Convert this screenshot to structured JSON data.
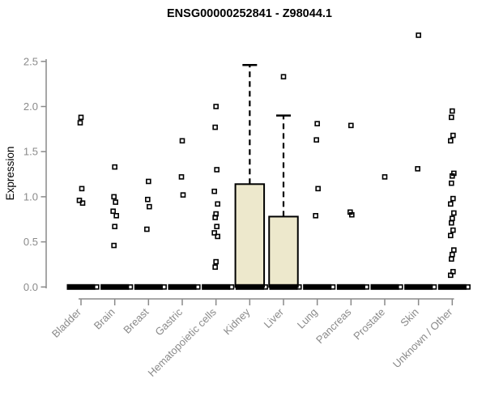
{
  "chart_data": {
    "type": "boxplot",
    "title": "ENSG00000252841 - Z98044.1",
    "ylabel": "Expression",
    "xlabel": "",
    "ylim": [
      0,
      2.85
    ],
    "grid": "off",
    "legend": "none",
    "yticks": [
      {
        "value": 0.0,
        "label": "0.0"
      },
      {
        "value": 0.5,
        "label": "0.5"
      },
      {
        "value": 1.0,
        "label": "1.0"
      },
      {
        "value": 1.5,
        "label": "1.5"
      },
      {
        "value": 2.0,
        "label": "2.0"
      },
      {
        "value": 2.5,
        "label": "2.5"
      }
    ],
    "categories": [
      "Bladder",
      "Brain",
      "Breast",
      "Gastric",
      "Hematopoietic cells",
      "Kidney",
      "Liver",
      "Lung",
      "Pancreas",
      "Prostate",
      "Skin",
      "Unknown / Other"
    ],
    "colors": {
      "box_fill": "#EDE8CC",
      "box_stroke": "#000000",
      "median": "#000000",
      "point": "#000000",
      "axis": "#8A8A8A",
      "tick_label": "#8A8A8A",
      "title": "#000000"
    },
    "groups": [
      {
        "label": "Bladder",
        "q1": 0,
        "median": 0,
        "q3": 0,
        "whisker_high": 0,
        "point_at_zero": true,
        "points": [
          1.88,
          1.82,
          1.09,
          0.96,
          0.93
        ]
      },
      {
        "label": "Brain",
        "q1": 0,
        "median": 0,
        "q3": 0,
        "whisker_high": 0,
        "point_at_zero": true,
        "points": [
          1.33,
          1.0,
          0.94,
          0.84,
          0.79,
          0.67,
          0.46
        ]
      },
      {
        "label": "Breast",
        "q1": 0,
        "median": 0,
        "q3": 0,
        "whisker_high": 0,
        "point_at_zero": true,
        "points": [
          1.17,
          0.97,
          0.89,
          0.64
        ]
      },
      {
        "label": "Gastric",
        "q1": 0,
        "median": 0,
        "q3": 0,
        "whisker_high": 0,
        "point_at_zero": true,
        "points": [
          1.62,
          1.22,
          1.02
        ]
      },
      {
        "label": "Hematopoietic cells",
        "q1": 0,
        "median": 0,
        "q3": 0,
        "whisker_high": 0,
        "point_at_zero": true,
        "points": [
          2.0,
          1.77,
          1.3,
          1.06,
          0.92,
          0.81,
          0.77,
          0.67,
          0.6,
          0.56,
          0.28,
          0.22
        ]
      },
      {
        "label": "Kidney",
        "q1": 0,
        "median": 0,
        "q3": 1.14,
        "whisker_high": 2.46,
        "point_at_zero": true,
        "points": []
      },
      {
        "label": "Liver",
        "q1": 0,
        "median": 0,
        "q3": 0.78,
        "whisker_high": 1.9,
        "point_at_zero": true,
        "points": [
          2.33
        ]
      },
      {
        "label": "Lung",
        "q1": 0,
        "median": 0,
        "q3": 0,
        "whisker_high": 0,
        "point_at_zero": true,
        "points": [
          1.81,
          1.63,
          1.09,
          0.79
        ]
      },
      {
        "label": "Pancreas",
        "q1": 0,
        "median": 0,
        "q3": 0,
        "whisker_high": 0,
        "point_at_zero": true,
        "points": [
          1.79,
          0.83,
          0.8
        ]
      },
      {
        "label": "Prostate",
        "q1": 0,
        "median": 0,
        "q3": 0,
        "whisker_high": 0,
        "point_at_zero": true,
        "points": [
          1.22
        ]
      },
      {
        "label": "Skin",
        "q1": 0,
        "median": 0,
        "q3": 0,
        "whisker_high": 0,
        "point_at_zero": true,
        "points": [
          2.79,
          1.31
        ]
      },
      {
        "label": "Unknown / Other",
        "q1": 0,
        "median": 0,
        "q3": 0,
        "whisker_high": 0,
        "point_at_zero": true,
        "points": [
          1.95,
          1.88,
          1.68,
          1.62,
          1.26,
          1.23,
          1.15,
          0.98,
          0.92,
          0.82,
          0.76,
          0.71,
          0.63,
          0.57,
          0.41,
          0.36,
          0.31,
          0.17,
          0.13
        ]
      }
    ]
  }
}
